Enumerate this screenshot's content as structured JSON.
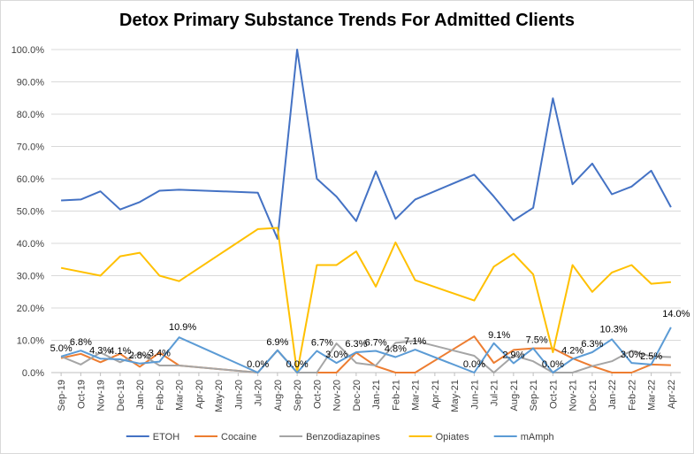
{
  "chart_data": {
    "type": "line",
    "title": "Detox Primary Substance Trends For Admitted Clients",
    "xlabel": "",
    "ylabel": "",
    "ylim": [
      0,
      100
    ],
    "yticks": [
      "0.0%",
      "10.0%",
      "20.0%",
      "30.0%",
      "40.0%",
      "50.0%",
      "60.0%",
      "70.0%",
      "80.0%",
      "90.0%",
      "100.0%"
    ],
    "grid": true,
    "legend_position": "bottom",
    "categories": [
      "Sep-19",
      "Oct-19",
      "Nov-19",
      "Dec-19",
      "Jan-20",
      "Feb-20",
      "Mar-20",
      "Apr-20",
      "May-20",
      "Jun-20",
      "Jul-20",
      "Aug-20",
      "Sep-20",
      "Oct-20",
      "Nov-20",
      "Dec-20",
      "Jan-21",
      "Feb-21",
      "Mar-21",
      "Apr-21",
      "May-21",
      "Jun-21",
      "Jul-21",
      "Aug-21",
      "Sep-21",
      "Oct-21",
      "Nov-21",
      "Dec-21",
      "Jan-22",
      "Feb-22",
      "Mar-22",
      "Apr-22"
    ],
    "series": [
      {
        "name": "ETOH",
        "color": "#4472C4",
        "values": [
          53.3,
          53.6,
          56.1,
          50.5,
          52.8,
          56.3,
          56.6,
          null,
          null,
          null,
          55.7,
          41.4,
          100.0,
          60.0,
          54.5,
          46.9,
          62.3,
          47.6,
          53.6,
          null,
          null,
          61.3,
          54.5,
          47.1,
          51.0,
          84.9,
          58.3,
          64.7,
          55.2,
          57.6,
          62.5,
          51.2
        ]
      },
      {
        "name": "Cocaine",
        "color": "#ED7D31",
        "values": [
          4.5,
          5.8,
          3.2,
          5.8,
          1.8,
          6.2,
          2.2,
          null,
          null,
          null,
          0.0,
          6.9,
          0.0,
          0.0,
          0.0,
          6.2,
          2.0,
          0.0,
          0.0,
          null,
          null,
          11.2,
          3.0,
          7.0,
          7.5,
          7.5,
          4.4,
          2.0,
          0.0,
          0.0,
          2.5,
          2.3
        ]
      },
      {
        "name": "Benzodiazapines",
        "color": "#A5A5A5",
        "values": [
          5.0,
          2.5,
          6.2,
          3.2,
          6.0,
          2.2,
          2.2,
          null,
          null,
          null,
          0.0,
          6.9,
          0.0,
          0.0,
          9.0,
          3.0,
          2.2,
          9.2,
          9.8,
          null,
          null,
          5.2,
          0.0,
          5.3,
          3.5,
          0.0,
          0.0,
          2.0,
          3.5,
          6.8,
          5.0,
          4.8
        ]
      },
      {
        "name": "Opiates",
        "color": "#FFC000",
        "values": [
          32.4,
          null,
          30.0,
          36.0,
          37.1,
          30.0,
          28.3,
          null,
          null,
          null,
          44.4,
          44.8,
          0.0,
          33.3,
          33.3,
          37.5,
          26.6,
          40.3,
          28.6,
          null,
          null,
          22.3,
          32.8,
          36.8,
          30.4,
          6.3,
          33.3,
          25.0,
          31.0,
          33.3,
          27.5,
          28.0
        ]
      },
      {
        "name": "mAmph",
        "color": "#5B9BD5",
        "values": [
          5.0,
          6.8,
          4.3,
          4.1,
          2.8,
          3.4,
          10.9,
          null,
          null,
          null,
          0.0,
          6.9,
          0.0,
          6.7,
          3.0,
          6.3,
          6.7,
          4.8,
          7.1,
          null,
          null,
          0.0,
          9.1,
          2.9,
          7.5,
          0.0,
          4.2,
          6.3,
          10.3,
          3.0,
          2.5,
          14.0
        ]
      }
    ],
    "data_labels": [
      {
        "series": "mAmph",
        "index": 0,
        "text": "5.0%"
      },
      {
        "series": "mAmph",
        "index": 1,
        "text": "6.8%"
      },
      {
        "series": "mAmph",
        "index": 2,
        "text": "4.3%"
      },
      {
        "series": "mAmph",
        "index": 3,
        "text": "4.1%"
      },
      {
        "series": "mAmph",
        "index": 4,
        "text": "2.8%"
      },
      {
        "series": "mAmph",
        "index": 5,
        "text": "3.4%"
      },
      {
        "series": "mAmph",
        "index": 6,
        "text": "10.9%"
      },
      {
        "series": "mAmph",
        "index": 10,
        "text": "0.0%"
      },
      {
        "series": "mAmph",
        "index": 11,
        "text": "6.9%"
      },
      {
        "series": "mAmph",
        "index": 12,
        "text": "0.0%"
      },
      {
        "series": "mAmph",
        "index": 13,
        "text": "6.7%"
      },
      {
        "series": "mAmph",
        "index": 14,
        "text": "3.0%"
      },
      {
        "series": "mAmph",
        "index": 15,
        "text": "6.3%"
      },
      {
        "series": "mAmph",
        "index": 16,
        "text": "6.7%"
      },
      {
        "series": "mAmph",
        "index": 17,
        "text": "4.8%"
      },
      {
        "series": "mAmph",
        "index": 18,
        "text": "7.1%"
      },
      {
        "series": "mAmph",
        "index": 21,
        "text": "0.0%"
      },
      {
        "series": "mAmph",
        "index": 22,
        "text": "9.1%"
      },
      {
        "series": "mAmph",
        "index": 23,
        "text": "2.9%"
      },
      {
        "series": "mAmph",
        "index": 24,
        "text": "7.5%"
      },
      {
        "series": "mAmph",
        "index": 25,
        "text": "0.0%"
      },
      {
        "series": "mAmph",
        "index": 26,
        "text": "4.2%"
      },
      {
        "series": "mAmph",
        "index": 27,
        "text": "6.3%"
      },
      {
        "series": "mAmph",
        "index": 28,
        "text": "10.3%"
      },
      {
        "series": "mAmph",
        "index": 29,
        "text": "3.0%"
      },
      {
        "series": "mAmph",
        "index": 30,
        "text": "2.5%"
      },
      {
        "series": "mAmph",
        "index": 31,
        "text": "14.0%"
      }
    ]
  }
}
